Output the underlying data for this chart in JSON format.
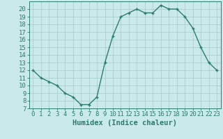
{
  "x": [
    0,
    1,
    2,
    3,
    4,
    5,
    6,
    7,
    8,
    9,
    10,
    11,
    12,
    13,
    14,
    15,
    16,
    17,
    18,
    19,
    20,
    21,
    22,
    23
  ],
  "y": [
    12,
    11,
    10.5,
    10,
    9,
    8.5,
    7.5,
    7.5,
    8.5,
    13,
    16.5,
    19,
    19.5,
    20,
    19.5,
    19.5,
    20.5,
    20,
    20,
    19,
    17.5,
    15,
    13,
    12
  ],
  "line_color": "#2d7a6e",
  "marker": "+",
  "bg_color": "#caeaea",
  "grid_color": "#aacece",
  "xlabel": "Humidex (Indice chaleur)",
  "xlabel_fontsize": 7.5,
  "ylim": [
    7,
    21
  ],
  "xlim": [
    -0.5,
    23.5
  ],
  "yticks": [
    7,
    8,
    9,
    10,
    11,
    12,
    13,
    14,
    15,
    16,
    17,
    18,
    19,
    20
  ],
  "xticks": [
    0,
    1,
    2,
    3,
    4,
    5,
    6,
    7,
    8,
    9,
    10,
    11,
    12,
    13,
    14,
    15,
    16,
    17,
    18,
    19,
    20,
    21,
    22,
    23
  ],
  "tick_fontsize": 6.5,
  "axis_color": "#2d7a6e",
  "markersize": 3.5,
  "linewidth": 1.0
}
